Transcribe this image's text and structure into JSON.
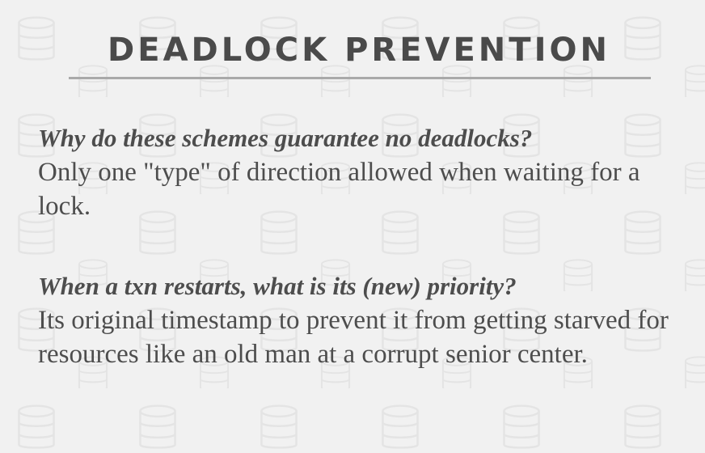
{
  "slide": {
    "title": "DEADLOCK PREVENTION",
    "qa": [
      {
        "question": "Why do these schemes guarantee no deadlocks?",
        "answer": "Only one \"type\" of direction allowed when waiting for a lock."
      },
      {
        "question": "When a txn restarts, what is its (new) priority?",
        "answer": "Its original timestamp to prevent it from getting starved for resources like an old man at a corrupt senior center."
      }
    ]
  },
  "colors": {
    "background": "#f1f1f1",
    "text": "#4d4d4d",
    "title": "#4a4a4a",
    "rule": "#a9a9a9",
    "pattern": "#e4e4e4"
  },
  "icons": {
    "background_pattern": "database-icon"
  }
}
